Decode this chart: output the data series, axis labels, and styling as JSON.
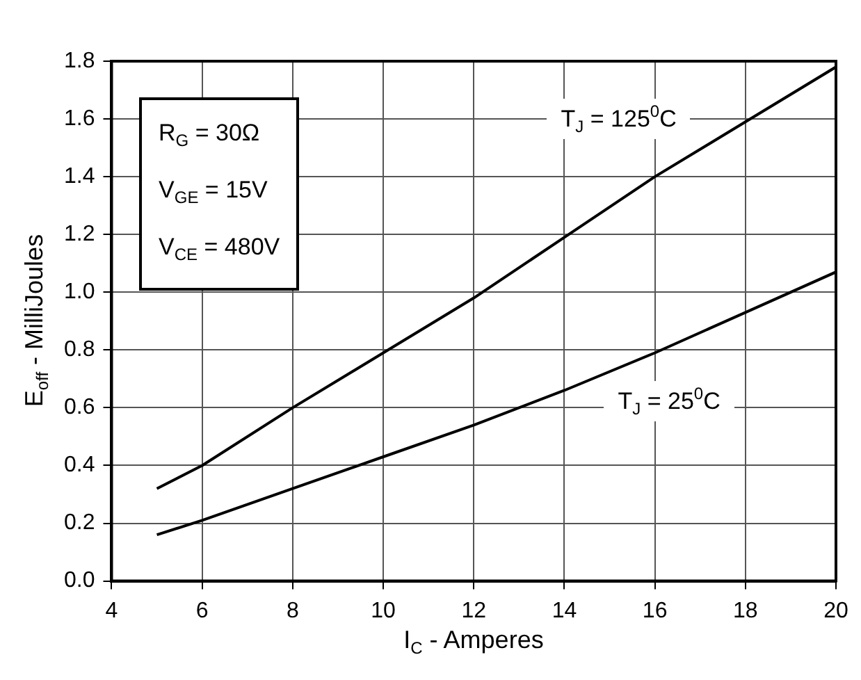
{
  "chart_data": {
    "type": "line",
    "xlabel": "I$_{C}$ - Amperes",
    "ylabel": "E$_{off}$ - MilliJoules",
    "xlim": [
      4,
      20
    ],
    "xticks": [
      4,
      6,
      8,
      10,
      12,
      14,
      16,
      18,
      20
    ],
    "ylim": [
      0,
      1.8
    ],
    "yticks": [
      {
        "value": 0,
        "label": "0.0"
      },
      {
        "value": 0.2,
        "label": "0.2"
      },
      {
        "value": 0.4,
        "label": "0.4"
      },
      {
        "value": 0.6,
        "label": "0.6"
      },
      {
        "value": 0.8,
        "label": "0.8"
      },
      {
        "value": 1,
        "label": "1.0"
      },
      {
        "value": 1.2,
        "label": "1.2"
      },
      {
        "value": 1.4,
        "label": "1.4"
      },
      {
        "value": 1.6,
        "label": "1.6"
      },
      {
        "value": 1.8,
        "label": "1.8"
      }
    ],
    "grid": true,
    "legend": false,
    "marker": "none",
    "line_style": "solid",
    "x": [
      5,
      6,
      8,
      10,
      12,
      14,
      16,
      18,
      20
    ],
    "series": [
      {
        "name": "T$_{J}$ = 125$^{0}$C",
        "color": "#000000",
        "values": [
          0.32,
          0.4,
          0.6,
          0.79,
          0.98,
          1.19,
          1.4,
          1.59,
          1.78
        ]
      },
      {
        "name": "T$_{J}$ = 25$^{0}$C",
        "color": "#000000",
        "values": [
          0.16,
          0.21,
          0.32,
          0.43,
          0.54,
          0.66,
          0.79,
          0.93,
          1.07
        ]
      }
    ],
    "annotations": [
      "R$_{G}$ = 30Ω",
      "V$_{GE}$ = 15V",
      "V$_{CE}$ = 480V"
    ]
  }
}
